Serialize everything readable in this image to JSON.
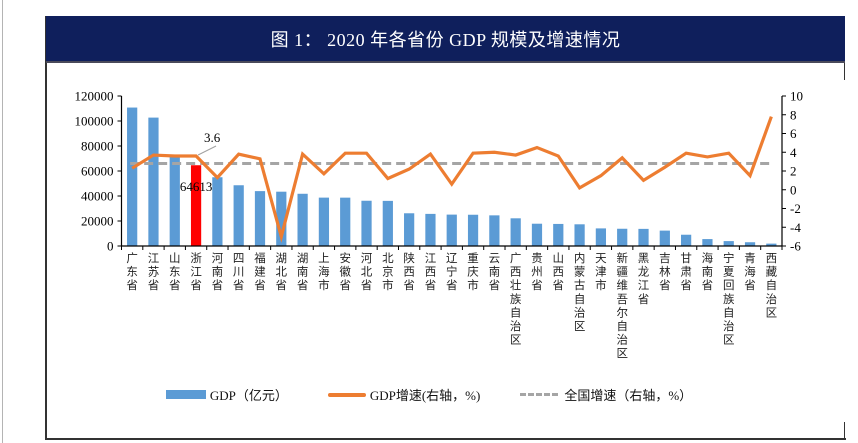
{
  "title": "图 1：  2020 年各省份 GDP 规模及增速情况",
  "colors": {
    "banner": "#0f1f5c",
    "gdp_bar": "#5b9bd5",
    "highlight_bar": "#ff0000",
    "growth_line": "#ed7d31",
    "national_line": "#a5a5a5"
  },
  "legend": [
    {
      "name": "GDP",
      "label": "GDP（亿元）"
    },
    {
      "name": "growth",
      "label": "GDP增速(右轴，%)"
    },
    {
      "name": "national",
      "label": "全国增速（右轴，%）"
    }
  ],
  "chart_data": {
    "type": "bar+line",
    "title": "2020 年各省份 GDP 规模及增速情况",
    "categories": [
      "广东省",
      "江苏省",
      "山东省",
      "浙江省",
      "河南省",
      "四川省",
      "福建省",
      "湖北省",
      "湖南省",
      "上海市",
      "安徽省",
      "河北省",
      "北京市",
      "陕西省",
      "江西省",
      "辽宁省",
      "重庆市",
      "云南省",
      "广西壮族自治区",
      "贵州省",
      "山西省",
      "内蒙古自治区",
      "天津市",
      "新疆维吾尔自治区",
      "黑龙江省",
      "吉林省",
      "甘肃省",
      "海南省",
      "宁夏回族自治区",
      "青海省",
      "西藏自治区"
    ],
    "series": [
      {
        "name": "GDP（亿元）",
        "type": "bar",
        "axis": "left",
        "values": [
          110761,
          102719,
          73129,
          64613,
          54997,
          48599,
          43904,
          43443,
          41782,
          38701,
          38681,
          36207,
          36103,
          26182,
          25692,
          25115,
          25003,
          24522,
          22157,
          17827,
          17652,
          17360,
          14084,
          13798,
          13699,
          12311,
          9017,
          5532,
          3921,
          3006,
          1903
        ],
        "highlight_index": 3
      },
      {
        "name": "GDP增速(右轴，%)",
        "type": "line",
        "axis": "right",
        "values": [
          2.3,
          3.7,
          3.6,
          3.6,
          1.3,
          3.8,
          3.3,
          -5.0,
          3.8,
          1.7,
          3.9,
          3.9,
          1.2,
          2.2,
          3.8,
          0.6,
          3.9,
          4.0,
          3.7,
          4.5,
          3.6,
          0.2,
          1.5,
          3.4,
          1.0,
          2.4,
          3.9,
          3.5,
          3.9,
          1.5,
          7.8
        ]
      },
      {
        "name": "全国增速（右轴，%）",
        "type": "line",
        "style": "dashed",
        "axis": "right",
        "value": 2.8
      }
    ],
    "annotations": [
      {
        "category": "浙江省",
        "series": "GDP增速",
        "text": "3.6"
      },
      {
        "category": "浙江省",
        "series": "GDP",
        "text": "64613"
      }
    ],
    "y_left": {
      "min": 0,
      "max": 120000,
      "ticks": [
        0,
        20000,
        40000,
        60000,
        80000,
        100000,
        120000
      ],
      "tick_labels": [
        "0",
        "20000",
        "40000",
        "60000",
        "80000",
        "100000",
        "120000"
      ]
    },
    "y_right": {
      "min": -6,
      "max": 10,
      "ticks": [
        -6,
        -4,
        -2,
        0,
        2,
        4,
        6,
        8,
        10
      ],
      "tick_labels": [
        "-6",
        "-4",
        "-2",
        "0",
        "2",
        "4",
        "6",
        "8",
        "10"
      ]
    },
    "xlabel": "",
    "ylabel": "",
    "grid": false,
    "legend_position": "bottom"
  }
}
